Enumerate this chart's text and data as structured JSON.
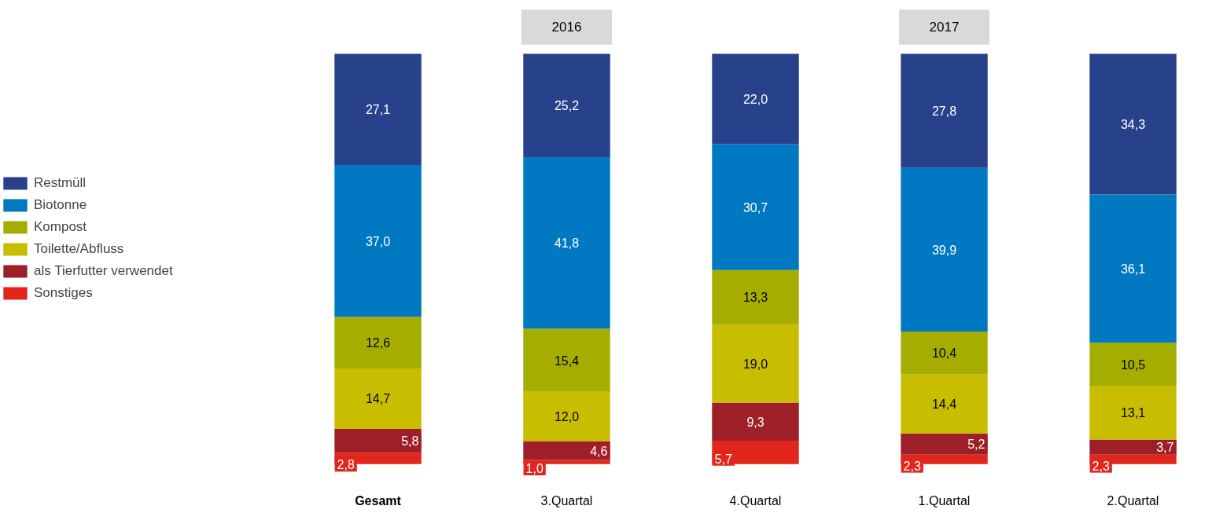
{
  "chart_data": {
    "type": "bar",
    "stacked": true,
    "legend": "left",
    "grid": false,
    "categories": [
      "Gesamt",
      "3.Quartal",
      "4.Quartal",
      "1.Quartal",
      "2.Quartal"
    ],
    "series": [
      {
        "name": "Sonstiges",
        "color": "#e2261c",
        "values": [
          2.8,
          1.0,
          5.7,
          2.3,
          2.3
        ],
        "value_labels": [
          "2,8",
          "1,0",
          "5,7",
          "2,3",
          "2,3"
        ]
      },
      {
        "name": "als Tierfutter verwendet",
        "color": "#9e1f27",
        "values": [
          5.8,
          4.6,
          9.3,
          5.2,
          3.7
        ],
        "value_labels": [
          "5,8",
          "4,6",
          "9,3",
          "5,2",
          "3,7"
        ]
      },
      {
        "name": "Toilette/Abfluss",
        "color": "#c9bd00",
        "values": [
          14.7,
          12.0,
          19.0,
          14.4,
          13.1
        ],
        "value_labels": [
          "14,7",
          "12,0",
          "19,0",
          "14,4",
          "13,1"
        ]
      },
      {
        "name": "Kompost",
        "color": "#a5ad00",
        "values": [
          12.6,
          15.4,
          13.3,
          10.4,
          10.5
        ],
        "value_labels": [
          "12,6",
          "15,4",
          "13,3",
          "10,4",
          "10,5"
        ]
      },
      {
        "name": "Biotonne",
        "color": "#0079c2",
        "values": [
          37.0,
          41.8,
          30.7,
          39.9,
          36.1
        ],
        "value_labels": [
          "37,0",
          "41,8",
          "30,7",
          "39,9",
          "36,1"
        ]
      },
      {
        "name": "Restmüll",
        "color": "#27418a",
        "values": [
          27.1,
          25.2,
          22.0,
          27.8,
          34.3
        ],
        "value_labels": [
          "27,1",
          "25,2",
          "22,0",
          "27,8",
          "34,3"
        ]
      }
    ],
    "annotations": [
      "2016",
      "2017"
    ]
  }
}
